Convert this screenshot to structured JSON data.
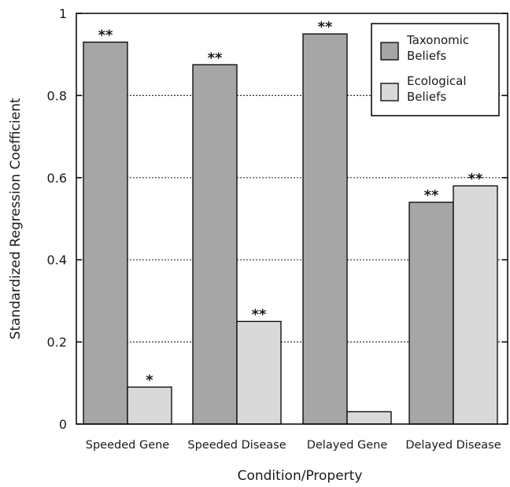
{
  "chart_data": {
    "type": "bar",
    "title": "",
    "xlabel": "Condition/Property",
    "ylabel": "Standardized Regression Coefficient",
    "ylim": [
      0,
      1
    ],
    "yticks": [
      "0",
      "0.2",
      "0.4",
      "0.6",
      "0.8",
      "1"
    ],
    "ytick_values": [
      0,
      0.2,
      0.4,
      0.6,
      0.8,
      1
    ],
    "grid": "horizontal dotted",
    "legend_position": "top-right",
    "categories": [
      "Speeded Gene",
      "Speeded Disease",
      "Delayed Gene",
      "Delayed Disease"
    ],
    "series": [
      {
        "name_lines": [
          "Taxonomic",
          "Beliefs"
        ],
        "color": "#a6a6a6",
        "values": [
          0.93,
          0.875,
          0.95,
          0.54
        ],
        "labels": [
          "**",
          "**",
          "**",
          "**"
        ]
      },
      {
        "name_lines": [
          "Ecological",
          "Beliefs"
        ],
        "color": "#d9d9d9",
        "values": [
          0.09,
          0.25,
          0.03,
          0.58
        ],
        "labels": [
          "*",
          "**",
          "",
          "**"
        ]
      }
    ]
  }
}
